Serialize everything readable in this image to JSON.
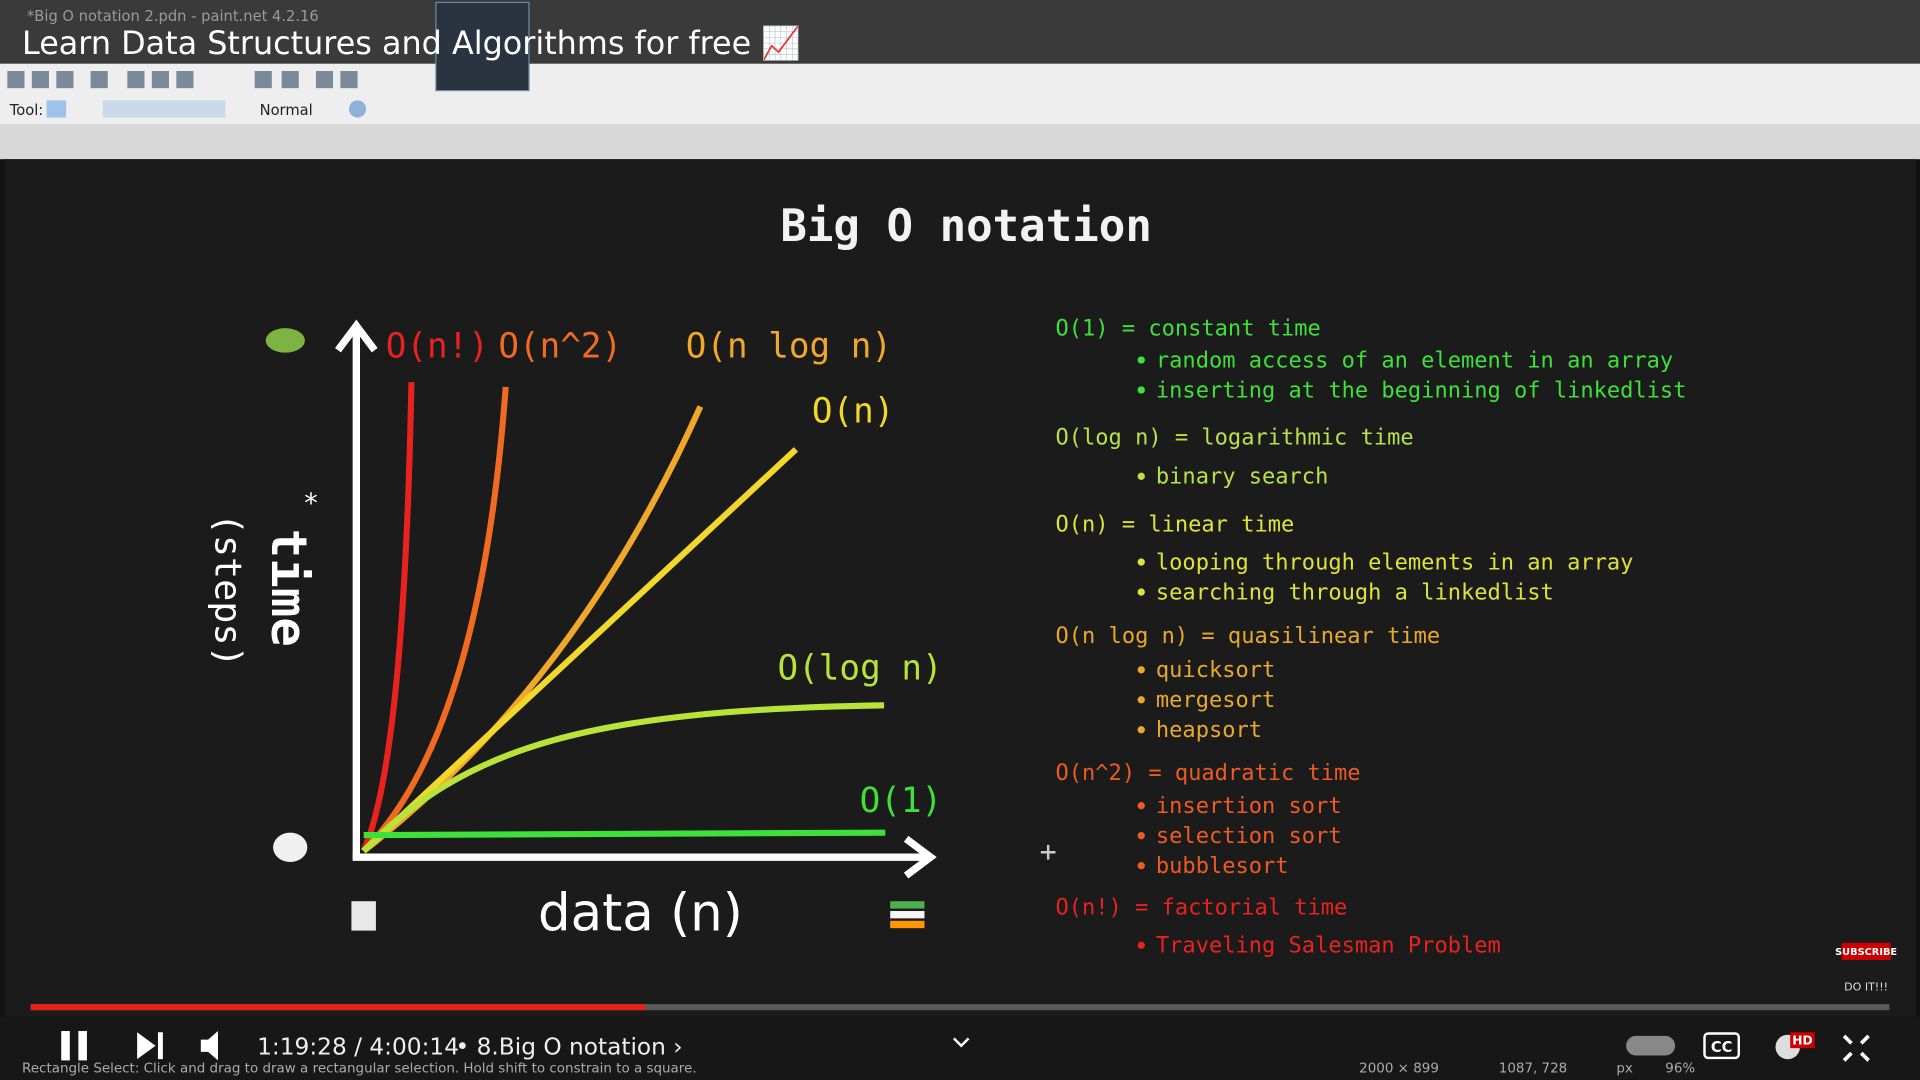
{
  "window_title": "*Big O notation 2.pdn - paint.net 4.2.16",
  "video_title": "Learn Data Structures and Algorithms for free 📈",
  "toolbar": {
    "tool_label": "Tool:",
    "blend_mode": "Normal"
  },
  "slide": {
    "title": "Big O notation",
    "y_axis_label": "time",
    "y_axis_note": "(steps)",
    "asterisk": "*",
    "x_axis_label": "data (n)",
    "curves": [
      {
        "label": "O(n!)",
        "color": "#e8231f"
      },
      {
        "label": "O(n^2)",
        "color": "#f06a22"
      },
      {
        "label": "O(n log n)",
        "color": "#f0a82a"
      },
      {
        "label": "O(n)",
        "color": "#f2d82a"
      },
      {
        "label": "O(log n)",
        "color": "#b8e43a"
      },
      {
        "label": "O(1)",
        "color": "#3ee03a"
      }
    ],
    "legend": [
      {
        "heading": "O(1) = constant time",
        "color": "#3ee03a",
        "items": [
          "random access of an element in an array",
          "inserting at the beginning of linkedlist"
        ]
      },
      {
        "heading": "O(log n) = logarithmic time",
        "color": "#b8e04a",
        "items": [
          "binary search"
        ]
      },
      {
        "heading": "O(n) = linear time",
        "color": "#dfe23a",
        "items": [
          "looping through elements in an array",
          "searching through a linkedlist"
        ]
      },
      {
        "heading": "O(n log n) = quasilinear time",
        "color": "#e8a82e",
        "items": [
          "quicksort",
          "mergesort",
          "heapsort"
        ]
      },
      {
        "heading": "O(n^2) = quadratic time",
        "color": "#ee5a24",
        "items": [
          "insertion sort",
          "selection sort",
          "bubblesort"
        ]
      },
      {
        "heading": "O(n!) = factorial time",
        "color": "#e8231f",
        "items": [
          "Traveling Salesman Problem"
        ]
      }
    ]
  },
  "player": {
    "time": "1:19:28 / 4:00:14",
    "chapter": "• 8.Big O notation ›",
    "cc": "CC",
    "hd": "HD"
  },
  "subscribe": {
    "badge": "SUBSCRIBE",
    "caption": "DO IT!!!"
  },
  "status": {
    "hint": "Rectangle Select: Click and drag to draw a rectangular selection. Hold shift to constrain to a square.",
    "image_size": "2000 × 899",
    "cursor": "1087, 728",
    "units": "px",
    "zoom": "96%"
  }
}
